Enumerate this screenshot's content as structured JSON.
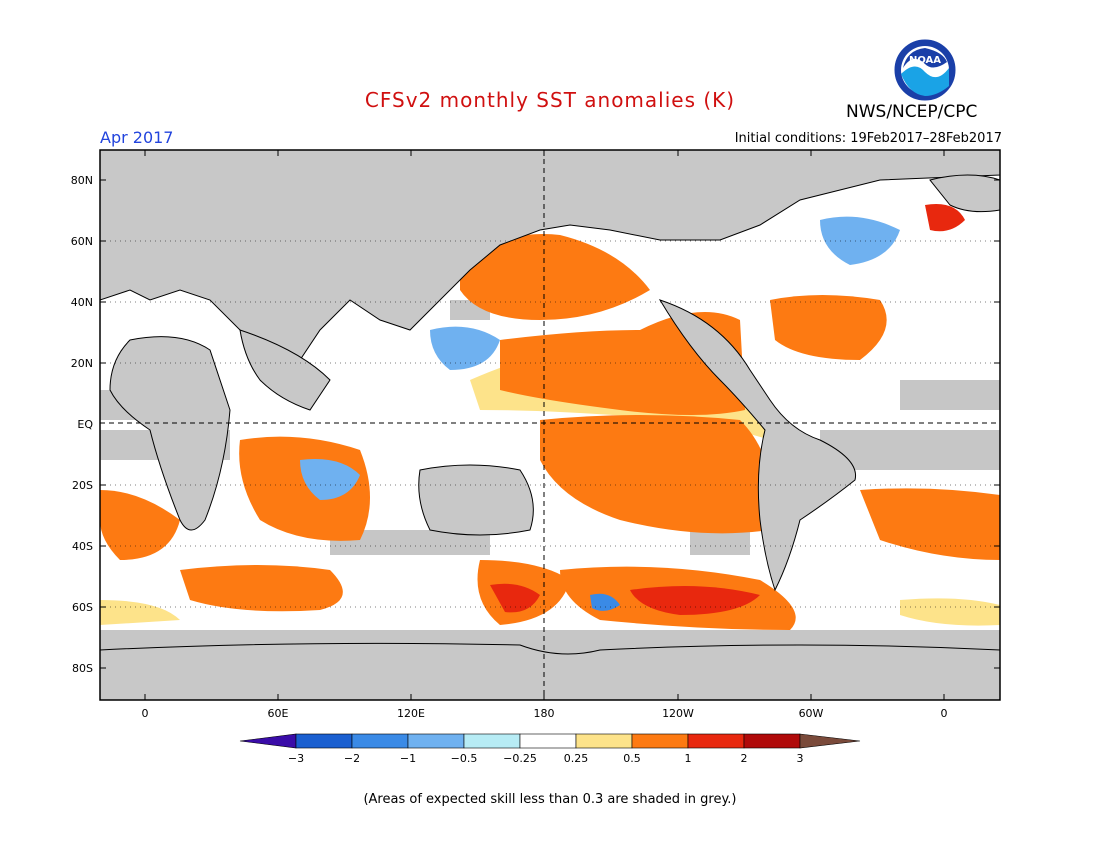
{
  "title": "CFSv2 monthly SST anomalies (K)",
  "month": "Apr 2017",
  "agency": "NWS/NCEP/CPC",
  "logo_text": "NOAA",
  "initial_conditions": "Initial conditions: 19Feb2017–28Feb2017",
  "footnote": "(Areas of expected skill less than 0.3 are shaded in grey.)",
  "lat_labels": [
    "80N",
    "60N",
    "40N",
    "20N",
    "EQ",
    "20S",
    "40S",
    "60S",
    "80S"
  ],
  "lon_labels": [
    "0",
    "60E",
    "120E",
    "180",
    "120W",
    "60W",
    "0"
  ],
  "colorbar": {
    "labels": [
      "−3",
      "−2",
      "−1",
      "−0.5",
      "−0.25",
      "0.25",
      "0.5",
      "1",
      "2",
      "3"
    ],
    "colors": [
      "#3a0ca8",
      "#1a5fd0",
      "#3a8ae6",
      "#6fb1f0",
      "#b7ecf5",
      "#ffffff",
      "#fde38a",
      "#fd7a12",
      "#e8280e",
      "#b00a0a",
      "#7a4a3a"
    ]
  },
  "colors": {
    "land": "#c8c8c8",
    "grey_skill": "#c6c6c6",
    "title": "#d01010",
    "month": "#2244dd"
  }
}
